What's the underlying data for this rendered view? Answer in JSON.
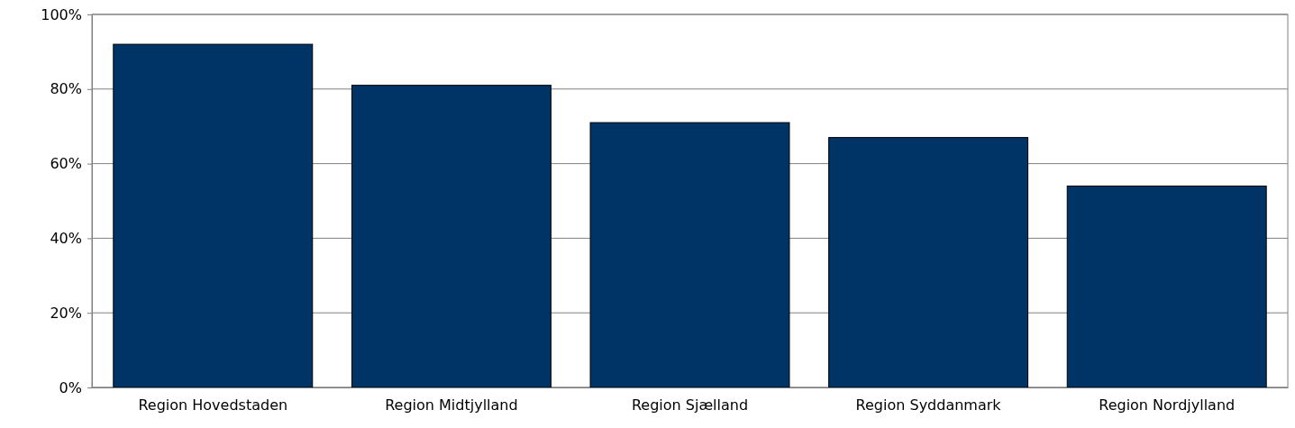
{
  "chart_data": {
    "type": "bar",
    "categories": [
      "Region Hovedstaden",
      "Region Midtjylland",
      "Region Sjælland",
      "Region Syddanmark",
      "Region Nordjylland"
    ],
    "values": [
      92,
      81,
      71,
      67,
      54
    ],
    "color": "#003366",
    "ylim": [
      0,
      100
    ],
    "yticks": [
      {
        "value": 0,
        "label": "0%"
      },
      {
        "value": 20,
        "label": "20%"
      },
      {
        "value": 40,
        "label": "40%"
      },
      {
        "value": 60,
        "label": "60%"
      },
      {
        "value": 80,
        "label": "80%"
      },
      {
        "value": 100,
        "label": "100%"
      }
    ],
    "grid": "y"
  }
}
